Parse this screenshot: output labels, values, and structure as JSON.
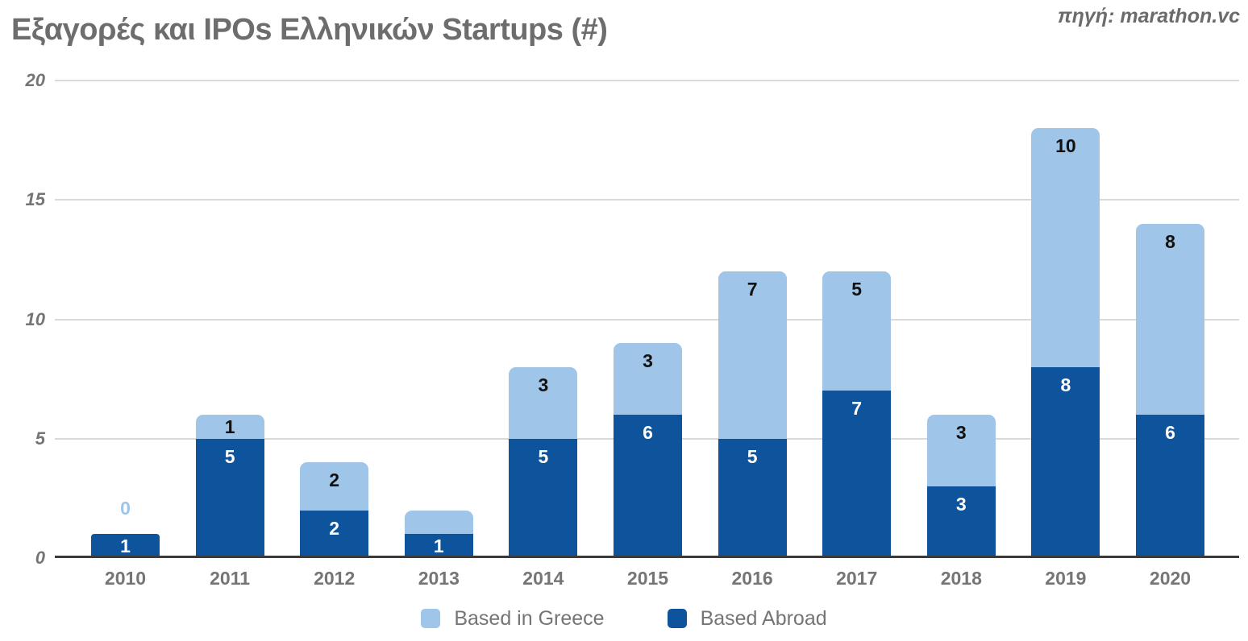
{
  "title": "Εξαγορές και IPOs Ελληνικών Startups (#)",
  "source": "πηγή: marathon.vc",
  "chart_data": {
    "type": "bar",
    "stacked": true,
    "title": "Εξαγορές και IPOs Ελληνικών Startups (#)",
    "categories": [
      "2010",
      "2011",
      "2012",
      "2013",
      "2014",
      "2015",
      "2016",
      "2017",
      "2018",
      "2019",
      "2020"
    ],
    "series": [
      {
        "name": "Based in Greece",
        "color": "#9fc5e8",
        "label_color": "#111111",
        "values": [
          0,
          1,
          2,
          1,
          3,
          3,
          7,
          5,
          3,
          10,
          8
        ],
        "labels_shown": [
          true,
          true,
          true,
          false,
          true,
          true,
          true,
          true,
          true,
          true,
          true
        ]
      },
      {
        "name": "Based Abroad",
        "color": "#0e549c",
        "label_color": "#ffffff",
        "values": [
          1,
          5,
          2,
          1,
          5,
          6,
          5,
          7,
          3,
          8,
          6
        ],
        "labels_shown": [
          true,
          true,
          true,
          true,
          true,
          true,
          true,
          true,
          true,
          true,
          true
        ]
      }
    ],
    "totals": [
      1,
      6,
      4,
      2,
      8,
      9,
      12,
      12,
      6,
      18,
      14
    ],
    "ylim": [
      0,
      20
    ],
    "yticks": [
      0,
      5,
      10,
      15,
      20
    ],
    "grid": true,
    "legend_position": "bottom",
    "zero_label": {
      "category": "2010",
      "series": "Based in Greece",
      "text": "0",
      "color": "#9fc5e8"
    }
  },
  "colors": {
    "background": "#ffffff",
    "title_text": "#6d6d6d",
    "axis_text": "#757575",
    "gridline": "#d9d9d9",
    "baseline": "#3a3a3a",
    "greece_fill": "#9fc5e8",
    "abroad_fill": "#0e549c"
  }
}
